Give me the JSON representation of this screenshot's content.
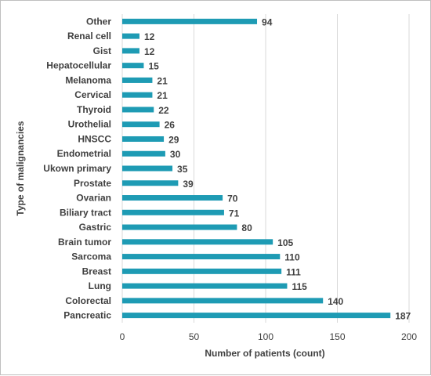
{
  "chart_data": {
    "type": "bar",
    "orientation": "horizontal",
    "title": "",
    "xlabel": "Number of patients (count)",
    "ylabel": "Type of malignancies",
    "xlim": [
      0,
      200
    ],
    "xticks": [
      0,
      50,
      100,
      150,
      200
    ],
    "grid": "vertical",
    "legend": "none",
    "bar_color": "#1e9bb4",
    "categories": [
      "Pancreatic",
      "Colorectal",
      "Lung",
      "Breast",
      "Sarcoma",
      "Brain tumor",
      "Gastric",
      "Biliary tract",
      "Ovarian",
      "Prostate",
      "Ukown primary",
      "Endometrial",
      "HNSCC",
      "Urothelial",
      "Thyroid",
      "Cervical",
      "Melanoma",
      "Hepatocellular",
      "Gist",
      "Renal cell",
      "Other"
    ],
    "values": [
      187,
      140,
      115,
      111,
      110,
      105,
      80,
      71,
      70,
      39,
      35,
      30,
      29,
      26,
      22,
      21,
      21,
      15,
      12,
      12,
      94
    ]
  }
}
